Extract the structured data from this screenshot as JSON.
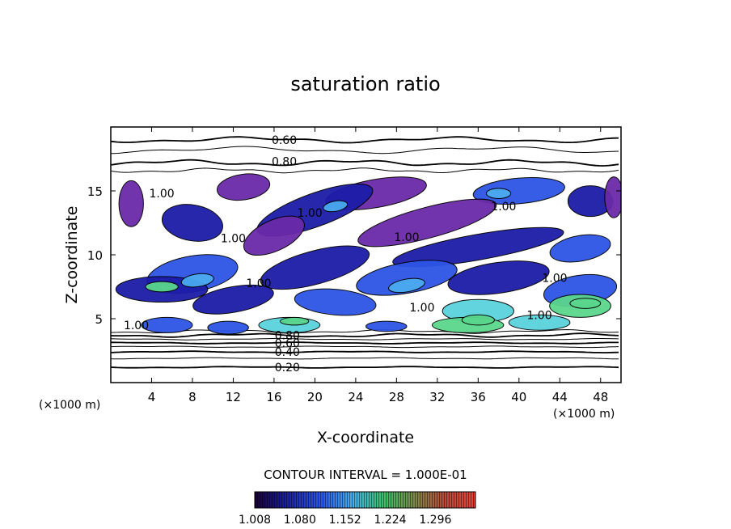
{
  "chart_data": {
    "type": "heatmap",
    "title": "saturation ratio",
    "xlabel": "X-coordinate",
    "ylabel": "Z-coordinate",
    "x_unit_label": "(×1000 m)",
    "z_unit_label": "(×1000 m)",
    "xlim": [
      0,
      50
    ],
    "ylim": [
      0,
      20
    ],
    "x_ticks": [
      4,
      8,
      12,
      16,
      20,
      24,
      28,
      32,
      36,
      40,
      44,
      48
    ],
    "y_ticks": [
      5,
      10,
      15
    ],
    "contour_interval_text": "CONTOUR INTERVAL = 1.000E-01",
    "contour_levels_labeled": [
      {
        "label": "0.60",
        "x": 17,
        "y": 19.0
      },
      {
        "label": "0.80",
        "x": 17,
        "y": 17.3
      },
      {
        "label": "1.00",
        "x": 5,
        "y": 14.8
      },
      {
        "label": "1.00",
        "x": 19.5,
        "y": 13.3
      },
      {
        "label": "1.00",
        "x": 38.5,
        "y": 13.8
      },
      {
        "label": "1.00",
        "x": 12,
        "y": 11.3
      },
      {
        "label": "1.00",
        "x": 29,
        "y": 11.4
      },
      {
        "label": "1.00",
        "x": 14.5,
        "y": 7.8
      },
      {
        "label": "1.00",
        "x": 43.5,
        "y": 8.2
      },
      {
        "label": "1.00",
        "x": 30.5,
        "y": 5.9
      },
      {
        "label": "1.00",
        "x": 42,
        "y": 5.3
      },
      {
        "label": "1.00",
        "x": 2.5,
        "y": 4.5
      },
      {
        "label": "0.80",
        "x": 17.3,
        "y": 3.7
      },
      {
        "label": "0.60",
        "x": 17.3,
        "y": 3.1
      },
      {
        "label": "0.40",
        "x": 17.3,
        "y": 2.4
      },
      {
        "label": "0.20",
        "x": 17.3,
        "y": 1.2
      }
    ],
    "colorbar": {
      "tick_labels": [
        "1.008",
        "1.080",
        "1.152",
        "1.224",
        "1.296"
      ],
      "min": 1.008,
      "max": 1.36
    },
    "colors": {
      "low": "#2a0a55",
      "purple": "#6a2aa8",
      "blue_dark": "#1c1ca8",
      "blue": "#2d55e6",
      "light_blue": "#4aaaf0",
      "cyan": "#5ad2dc",
      "green": "#5ad68c",
      "red": "#e03c28"
    }
  }
}
